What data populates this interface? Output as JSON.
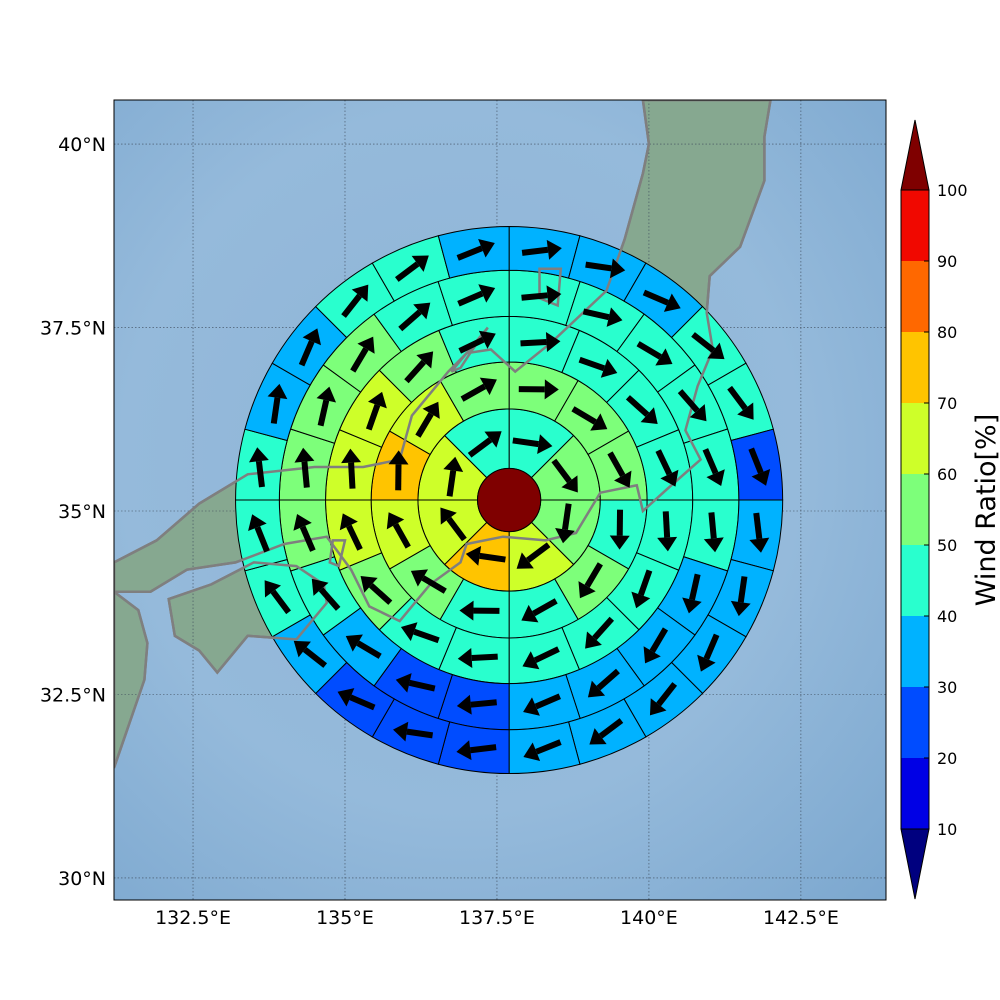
{
  "chart_data": {
    "type": "heatmap",
    "subtype": "polar sector map with wind vectors",
    "map": {
      "lon_range": [
        131.2,
        143.9
      ],
      "lat_range": [
        29.7,
        40.6
      ],
      "x_ticks": [
        "132.5°E",
        "135°E",
        "137.5°E",
        "140°E",
        "142.5°E"
      ],
      "x_tick_values": [
        132.5,
        135,
        137.5,
        140,
        142.5
      ],
      "y_ticks": [
        "40°N",
        "37.5°N",
        "35°N",
        "32.5°N",
        "30°N"
      ],
      "y_tick_values": [
        40,
        37.5,
        35,
        32.5,
        30
      ],
      "grid": true
    },
    "center": {
      "lon": 137.7,
      "lat": 35.15
    },
    "center_value": 100,
    "ring_edges_deg": [
      0.52,
      1.5,
      2.27,
      3.02,
      3.78,
      4.5
    ],
    "rings": [
      {
        "sectors": 8,
        "values": [
          48,
          52,
          55,
          60,
          72,
          65,
          62,
          48
        ]
      },
      {
        "sectors": 12,
        "values": [
          50,
          52,
          55,
          48,
          52,
          45,
          45,
          55,
          65,
          72,
          65,
          55
        ]
      },
      {
        "sectors": 16,
        "values": [
          42,
          45,
          48,
          45,
          45,
          42,
          45,
          42,
          45,
          45,
          55,
          62,
          65,
          62,
          55,
          45
        ]
      },
      {
        "sectors": 20,
        "values": [
          45,
          45,
          45,
          45,
          42,
          40,
          38,
          35,
          38,
          35,
          25,
          25,
          35,
          40,
          50,
          55,
          55,
          52,
          48,
          45
        ]
      },
      {
        "sectors": 24,
        "values": [
          38,
          32,
          32,
          45,
          48,
          22,
          38,
          32,
          30,
          38,
          32,
          35,
          25,
          25,
          25,
          35,
          40,
          45,
          42,
          38,
          38,
          42,
          45,
          35
        ]
      }
    ],
    "colorbar": {
      "label": "Wind Ratio[%]",
      "ticks": [
        10,
        20,
        30,
        40,
        50,
        60,
        70,
        80,
        90,
        100
      ],
      "bounds": [
        0,
        10,
        20,
        30,
        40,
        50,
        60,
        70,
        80,
        90,
        100,
        110
      ],
      "colors": [
        "#00007f",
        "#0000e5",
        "#004cff",
        "#00b2ff",
        "#29ffce",
        "#7dff7a",
        "#ceff29",
        "#ffc400",
        "#ff6800",
        "#f10800",
        "#7f0000"
      ]
    },
    "colors": {
      "sea": "#8fb6d8",
      "land": "#86a890",
      "coastline": "#7f7f7f",
      "arrow": "#000000",
      "sector_edge": "#000000"
    }
  }
}
